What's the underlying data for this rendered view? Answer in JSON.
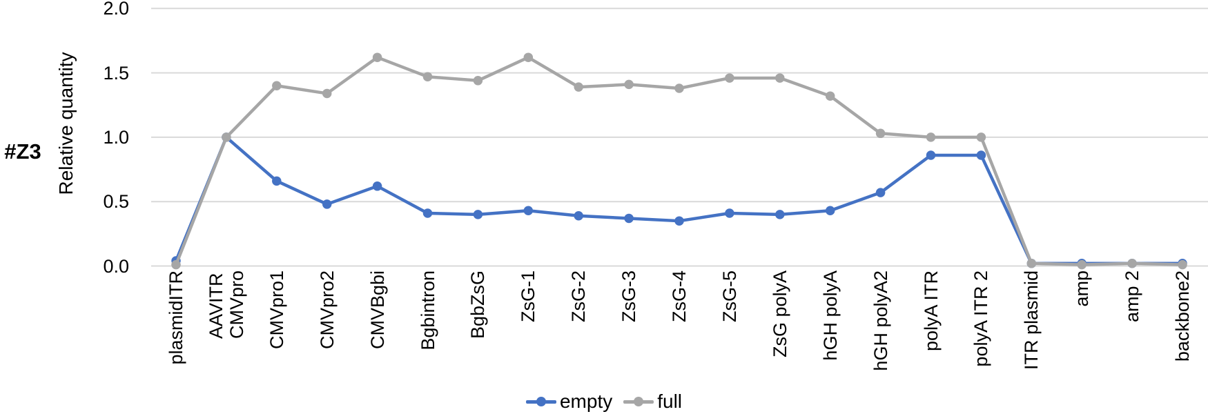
{
  "chart_data": {
    "type": "line",
    "row_label": "#Z3",
    "ylabel": "Relative quantity",
    "xlabel": "",
    "ylim": [
      0,
      2
    ],
    "yticks": [
      0,
      0.5,
      1,
      1.5,
      2
    ],
    "ytick_labels": [
      "0.0",
      "0.5",
      "1.0",
      "1.5",
      "2.0"
    ],
    "grid": true,
    "gridline_color": "#D9D9D9",
    "legend_position": "bottom-center",
    "categories": [
      "plasmidITR",
      "AAVITR\nCMVpro",
      "CMVpro1",
      "CMVpro2",
      "CMVBgbi",
      "Bgbintron",
      "BgbZsG",
      "ZsG-1",
      "ZsG-2",
      "ZsG-3",
      "ZsG-4",
      "ZsG-5",
      "ZsG polyA",
      "hGH polyA",
      "hGH polyA2",
      "polyA ITR",
      "polyA ITR 2",
      "ITR plasmid",
      "amp",
      "amp 2",
      "backbone2"
    ],
    "series": [
      {
        "name": "empty",
        "color": "#4472C4",
        "values": [
          0.04,
          1.0,
          0.66,
          0.48,
          0.62,
          0.41,
          0.4,
          0.43,
          0.39,
          0.37,
          0.35,
          0.41,
          0.4,
          0.43,
          0.57,
          0.86,
          0.86,
          0.02,
          0.02,
          0.02,
          0.02
        ]
      },
      {
        "name": "full",
        "color": "#A6A6A6",
        "values": [
          0.01,
          1.0,
          1.4,
          1.34,
          1.62,
          1.47,
          1.44,
          1.62,
          1.39,
          1.41,
          1.38,
          1.46,
          1.46,
          1.32,
          1.03,
          1.0,
          1.0,
          0.02,
          0.01,
          0.02,
          0.01
        ]
      }
    ]
  }
}
